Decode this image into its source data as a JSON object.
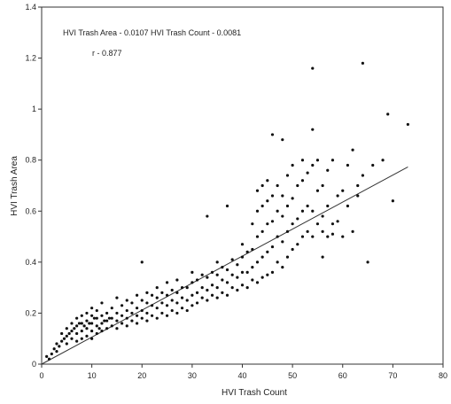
{
  "chart_data": {
    "type": "scatter",
    "title": "",
    "equation": "HVI Trash Area - 0.0107 HVI Trash Count - 0.0081",
    "r_label": "r - 0.877",
    "xlabel": "HVI Trash Count",
    "ylabel": "HVI Trash Area",
    "xlim": [
      0,
      80
    ],
    "ylim": [
      0,
      1.4
    ],
    "xticks": [
      0,
      10,
      20,
      30,
      40,
      50,
      60,
      70,
      80
    ],
    "xtick_labels": [
      "0",
      "10",
      "20",
      "30",
      "40",
      "50",
      "60",
      "70",
      "80"
    ],
    "yticks": [
      0,
      0.2,
      0.4,
      0.6,
      0.8,
      1.0,
      1.2,
      1.4
    ],
    "ytick_labels": [
      "0",
      "0.2",
      "0.4",
      "0.6",
      "0.8",
      "1",
      "1.2",
      "1.4"
    ],
    "grid": false,
    "fit_line": {
      "slope": 0.0107,
      "intercept": -0.0081,
      "x_range": [
        0,
        73
      ]
    },
    "series": [
      {
        "points": [
          [
            1,
            0.03
          ],
          [
            1.5,
            0.02
          ],
          [
            2,
            0.04
          ],
          [
            2.5,
            0.06
          ],
          [
            3,
            0.05
          ],
          [
            3,
            0.08
          ],
          [
            3.5,
            0.07
          ],
          [
            4,
            0.09
          ],
          [
            4,
            0.12
          ],
          [
            4.5,
            0.1
          ],
          [
            5,
            0.08
          ],
          [
            5,
            0.11
          ],
          [
            5,
            0.14
          ],
          [
            5.5,
            0.12
          ],
          [
            6,
            0.1
          ],
          [
            6,
            0.13
          ],
          [
            6,
            0.16
          ],
          [
            6.5,
            0.14
          ],
          [
            7,
            0.09
          ],
          [
            7,
            0.12
          ],
          [
            7,
            0.15
          ],
          [
            7,
            0.18
          ],
          [
            7.5,
            0.16
          ],
          [
            8,
            0.1
          ],
          [
            8,
            0.13
          ],
          [
            8,
            0.16
          ],
          [
            8,
            0.19
          ],
          [
            8.5,
            0.15
          ],
          [
            9,
            0.11
          ],
          [
            9,
            0.14
          ],
          [
            9,
            0.17
          ],
          [
            9,
            0.2
          ],
          [
            9.5,
            0.16
          ],
          [
            10,
            0.1
          ],
          [
            10,
            0.13
          ],
          [
            10,
            0.16
          ],
          [
            10,
            0.19
          ],
          [
            10,
            0.22
          ],
          [
            10.5,
            0.18
          ],
          [
            11,
            0.12
          ],
          [
            11,
            0.15
          ],
          [
            11,
            0.18
          ],
          [
            11,
            0.21
          ],
          [
            11.5,
            0.14
          ],
          [
            12,
            0.13
          ],
          [
            12,
            0.16
          ],
          [
            12,
            0.19
          ],
          [
            12,
            0.24
          ],
          [
            12.5,
            0.17
          ],
          [
            13,
            0.14
          ],
          [
            13,
            0.17
          ],
          [
            13,
            0.2
          ],
          [
            13.5,
            0.18
          ],
          [
            14,
            0.15
          ],
          [
            14,
            0.18
          ],
          [
            14,
            0.22
          ],
          [
            15,
            0.14
          ],
          [
            15,
            0.17
          ],
          [
            15,
            0.2
          ],
          [
            15,
            0.26
          ],
          [
            16,
            0.16
          ],
          [
            16,
            0.19
          ],
          [
            16,
            0.23
          ],
          [
            17,
            0.15
          ],
          [
            17,
            0.18
          ],
          [
            17,
            0.21
          ],
          [
            17,
            0.25
          ],
          [
            18,
            0.17
          ],
          [
            18,
            0.2
          ],
          [
            18,
            0.24
          ],
          [
            19,
            0.16
          ],
          [
            19,
            0.19
          ],
          [
            19,
            0.22
          ],
          [
            19,
            0.27
          ],
          [
            20,
            0.18
          ],
          [
            20,
            0.21
          ],
          [
            20,
            0.25
          ],
          [
            20,
            0.4
          ],
          [
            21,
            0.17
          ],
          [
            21,
            0.2
          ],
          [
            21,
            0.24
          ],
          [
            21,
            0.28
          ],
          [
            22,
            0.19
          ],
          [
            22,
            0.23
          ],
          [
            22,
            0.27
          ],
          [
            23,
            0.18
          ],
          [
            23,
            0.22
          ],
          [
            23,
            0.26
          ],
          [
            23,
            0.3
          ],
          [
            24,
            0.2
          ],
          [
            24,
            0.24
          ],
          [
            24,
            0.28
          ],
          [
            25,
            0.19
          ],
          [
            25,
            0.23
          ],
          [
            25,
            0.27
          ],
          [
            25,
            0.32
          ],
          [
            26,
            0.21
          ],
          [
            26,
            0.25
          ],
          [
            26,
            0.29
          ],
          [
            27,
            0.2
          ],
          [
            27,
            0.24
          ],
          [
            27,
            0.28
          ],
          [
            27,
            0.33
          ],
          [
            28,
            0.22
          ],
          [
            28,
            0.26
          ],
          [
            28,
            0.3
          ],
          [
            29,
            0.21
          ],
          [
            29,
            0.25
          ],
          [
            29,
            0.3
          ],
          [
            30,
            0.23
          ],
          [
            30,
            0.27
          ],
          [
            30,
            0.32
          ],
          [
            30,
            0.36
          ],
          [
            31,
            0.24
          ],
          [
            31,
            0.28
          ],
          [
            31,
            0.33
          ],
          [
            32,
            0.26
          ],
          [
            32,
            0.3
          ],
          [
            32,
            0.35
          ],
          [
            33,
            0.25
          ],
          [
            33,
            0.29
          ],
          [
            33,
            0.34
          ],
          [
            33,
            0.58
          ],
          [
            34,
            0.27
          ],
          [
            34,
            0.31
          ],
          [
            34,
            0.36
          ],
          [
            35,
            0.26
          ],
          [
            35,
            0.3
          ],
          [
            35,
            0.35
          ],
          [
            35,
            0.4
          ],
          [
            36,
            0.28
          ],
          [
            36,
            0.33
          ],
          [
            36,
            0.38
          ],
          [
            37,
            0.27
          ],
          [
            37,
            0.32
          ],
          [
            37,
            0.37
          ],
          [
            37,
            0.62
          ],
          [
            38,
            0.3
          ],
          [
            38,
            0.35
          ],
          [
            38,
            0.41
          ],
          [
            39,
            0.29
          ],
          [
            39,
            0.34
          ],
          [
            39,
            0.39
          ],
          [
            40,
            0.31
          ],
          [
            40,
            0.36
          ],
          [
            40,
            0.42
          ],
          [
            40,
            0.47
          ],
          [
            41,
            0.3
          ],
          [
            41,
            0.36
          ],
          [
            41,
            0.44
          ],
          [
            42,
            0.33
          ],
          [
            42,
            0.38
          ],
          [
            42,
            0.45
          ],
          [
            42,
            0.55
          ],
          [
            43,
            0.32
          ],
          [
            43,
            0.4
          ],
          [
            43,
            0.5
          ],
          [
            43,
            0.6
          ],
          [
            43,
            0.68
          ],
          [
            44,
            0.34
          ],
          [
            44,
            0.42
          ],
          [
            44,
            0.52
          ],
          [
            44,
            0.62
          ],
          [
            44,
            0.7
          ],
          [
            45,
            0.35
          ],
          [
            45,
            0.44
          ],
          [
            45,
            0.55
          ],
          [
            45,
            0.64
          ],
          [
            45,
            0.72
          ],
          [
            46,
            0.36
          ],
          [
            46,
            0.46
          ],
          [
            46,
            0.56
          ],
          [
            46,
            0.66
          ],
          [
            46,
            0.9
          ],
          [
            47,
            0.4
          ],
          [
            47,
            0.5
          ],
          [
            47,
            0.6
          ],
          [
            47,
            0.7
          ],
          [
            48,
            0.38
          ],
          [
            48,
            0.48
          ],
          [
            48,
            0.58
          ],
          [
            48,
            0.66
          ],
          [
            48,
            0.88
          ],
          [
            49,
            0.42
          ],
          [
            49,
            0.52
          ],
          [
            49,
            0.62
          ],
          [
            49,
            0.74
          ],
          [
            50,
            0.45
          ],
          [
            50,
            0.55
          ],
          [
            50,
            0.65
          ],
          [
            50,
            0.78
          ],
          [
            51,
            0.47
          ],
          [
            51,
            0.57
          ],
          [
            51,
            0.7
          ],
          [
            52,
            0.5
          ],
          [
            52,
            0.6
          ],
          [
            52,
            0.72
          ],
          [
            52,
            0.8
          ],
          [
            53,
            0.52
          ],
          [
            53,
            0.62
          ],
          [
            53,
            0.75
          ],
          [
            54,
            0.5
          ],
          [
            54,
            0.6
          ],
          [
            54,
            0.78
          ],
          [
            54,
            0.92
          ],
          [
            54,
            1.16
          ],
          [
            55,
            0.55
          ],
          [
            55,
            0.68
          ],
          [
            55,
            0.8
          ],
          [
            56,
            0.42
          ],
          [
            56,
            0.52
          ],
          [
            56,
            0.58
          ],
          [
            56,
            0.7
          ],
          [
            57,
            0.5
          ],
          [
            57,
            0.62
          ],
          [
            57,
            0.76
          ],
          [
            58,
            0.51
          ],
          [
            58,
            0.55
          ],
          [
            58,
            0.8
          ],
          [
            59,
            0.56
          ],
          [
            59,
            0.66
          ],
          [
            60,
            0.5
          ],
          [
            60,
            0.68
          ],
          [
            61,
            0.62
          ],
          [
            61,
            0.78
          ],
          [
            62,
            0.84
          ],
          [
            62,
            0.52
          ],
          [
            63,
            0.66
          ],
          [
            63,
            0.7
          ],
          [
            64,
            1.18
          ],
          [
            64,
            0.74
          ],
          [
            65,
            0.4
          ],
          [
            66,
            0.78
          ],
          [
            68,
            0.8
          ],
          [
            69,
            0.98
          ],
          [
            70,
            0.64
          ],
          [
            73,
            0.94
          ]
        ]
      }
    ]
  }
}
